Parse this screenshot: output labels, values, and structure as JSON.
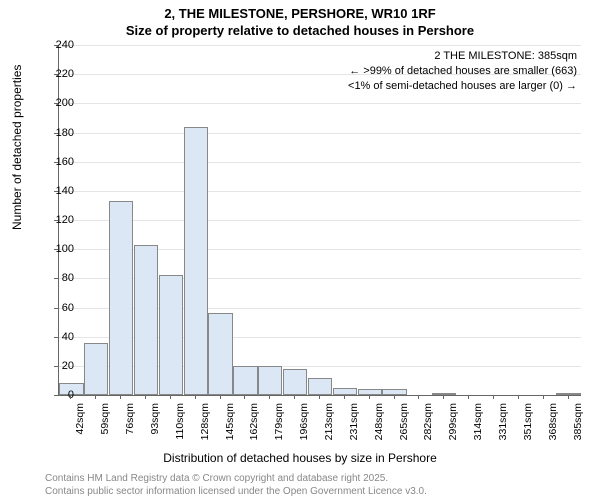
{
  "title_main": "2, THE MILESTONE, PERSHORE, WR10 1RF",
  "title_sub": "Size of property relative to detached houses in Pershore",
  "y_axis_label": "Number of detached properties",
  "x_axis_label": "Distribution of detached houses by size in Pershore",
  "footer_line1": "Contains HM Land Registry data © Crown copyright and database right 2025.",
  "footer_line2": "Contains public sector information licensed under the Open Government Licence v3.0.",
  "annotation_line1": "2 THE MILESTONE: 385sqm",
  "annotation_line2": "← >99% of detached houses are smaller (663)",
  "annotation_line3": "<1% of semi-detached houses are larger (0) →",
  "chart": {
    "type": "histogram",
    "bar_fill": "#dbe7f5",
    "bar_border": "#888888",
    "grid_color": "#e5e5e5",
    "axis_color": "#666666",
    "background": "#ffffff",
    "ylim": [
      0,
      240
    ],
    "ytick_step": 20,
    "x_tick_labels": [
      "42sqm",
      "59sqm",
      "76sqm",
      "93sqm",
      "110sqm",
      "128sqm",
      "145sqm",
      "162sqm",
      "179sqm",
      "196sqm",
      "213sqm",
      "231sqm",
      "248sqm",
      "265sqm",
      "282sqm",
      "299sqm",
      "314sqm",
      "331sqm",
      "351sqm",
      "368sqm",
      "385sqm"
    ],
    "bar_values": [
      8,
      36,
      133,
      103,
      82,
      184,
      56,
      20,
      20,
      18,
      12,
      5,
      4,
      4,
      0,
      1,
      0,
      0,
      0,
      0,
      1
    ],
    "title_fontsize": 13,
    "label_fontsize": 12,
    "tick_fontsize": 11,
    "footer_color": "#888888"
  }
}
